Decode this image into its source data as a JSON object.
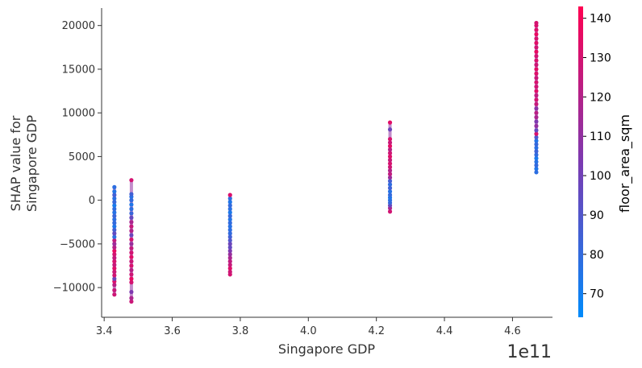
{
  "chart_data": {
    "type": "scatter",
    "title": "",
    "xlabel": "Singapore GDP",
    "ylabel_lines": [
      "SHAP value for",
      "Singapore GDP"
    ],
    "x_offset_label": "1e11",
    "x_scale": 100000000000,
    "xlim": [
      3.3925,
      4.7175
    ],
    "ylim": [
      -13400,
      22000
    ],
    "x_ticks": [
      3.4,
      3.6,
      3.8,
      4.0,
      4.2,
      4.4,
      4.6
    ],
    "x_tick_labels": [
      "3.4",
      "3.6",
      "3.8",
      "4.0",
      "4.2",
      "4.4",
      "4.6"
    ],
    "y_ticks": [
      -10000,
      -5000,
      0,
      5000,
      10000,
      15000,
      20000
    ],
    "y_tick_labels": [
      "−10000",
      "−5000",
      "0",
      "5000",
      "10000",
      "15000",
      "20000"
    ],
    "grid": false,
    "colorbar": {
      "label": "floor_area_sqm",
      "min": 64,
      "max": 143,
      "ticks": [
        70,
        80,
        90,
        100,
        110,
        120,
        130,
        140
      ],
      "tick_labels": [
        "70",
        "80",
        "90",
        "100",
        "110",
        "120",
        "130",
        "140"
      ],
      "colors": {
        "low": "#008bfb",
        "mid": "#7c3ab1",
        "high": "#ff0051"
      }
    },
    "groups": [
      {
        "x": 3.43,
        "ymin": -10800,
        "ymax": 1500,
        "points": [
          [
            -10800,
            128
          ],
          [
            -10300,
            126
          ],
          [
            -9700,
            122
          ],
          [
            -9300,
            132
          ],
          [
            -9000,
            98
          ],
          [
            -8600,
            129
          ],
          [
            -8200,
            127
          ],
          [
            -7800,
            133
          ],
          [
            -7400,
            126
          ],
          [
            -7000,
            131
          ],
          [
            -6600,
            125
          ],
          [
            -6200,
            129
          ],
          [
            -5800,
            136
          ],
          [
            -5400,
            121
          ],
          [
            -5000,
            113
          ],
          [
            -4600,
            124
          ],
          [
            -4200,
            78
          ],
          [
            -3800,
            95
          ],
          [
            -3400,
            86
          ],
          [
            -3000,
            74
          ],
          [
            -2600,
            80
          ],
          [
            -2200,
            78
          ],
          [
            -1800,
            82
          ],
          [
            -1400,
            76
          ],
          [
            -1000,
            79
          ],
          [
            -600,
            72
          ],
          [
            -200,
            81
          ],
          [
            200,
            77
          ],
          [
            600,
            85
          ],
          [
            1000,
            75
          ],
          [
            1500,
            78
          ]
        ]
      },
      {
        "x": 3.48,
        "ymin": -11600,
        "ymax": 2300,
        "points": [
          [
            -11600,
            127
          ],
          [
            -11200,
            118
          ],
          [
            -10500,
            104
          ],
          [
            -9400,
            130
          ],
          [
            -9000,
            136
          ],
          [
            -8500,
            128
          ],
          [
            -8000,
            122
          ],
          [
            -7500,
            131
          ],
          [
            -7000,
            127
          ],
          [
            -6500,
            134
          ],
          [
            -6000,
            129
          ],
          [
            -5500,
            125
          ],
          [
            -5000,
            112
          ],
          [
            -4500,
            130
          ],
          [
            -4000,
            98
          ],
          [
            -3500,
            120
          ],
          [
            -3000,
            126
          ],
          [
            -2500,
            118
          ],
          [
            -2000,
            96
          ],
          [
            -1500,
            82
          ],
          [
            -1000,
            78
          ],
          [
            -500,
            74
          ],
          [
            0,
            80
          ],
          [
            400,
            77
          ],
          [
            700,
            85
          ],
          [
            2300,
            130
          ]
        ]
      },
      {
        "x": 3.77,
        "ymin": -8500,
        "ymax": 600,
        "points": [
          [
            -8500,
            130
          ],
          [
            -8200,
            128
          ],
          [
            -7800,
            133
          ],
          [
            -7400,
            126
          ],
          [
            -7000,
            124
          ],
          [
            -6600,
            118
          ],
          [
            -6200,
            112
          ],
          [
            -5800,
            104
          ],
          [
            -5400,
            96
          ],
          [
            -5000,
            98
          ],
          [
            -4600,
            90
          ],
          [
            -4200,
            85
          ],
          [
            -3800,
            80
          ],
          [
            -3400,
            78
          ],
          [
            -3000,
            76
          ],
          [
            -2600,
            79
          ],
          [
            -2200,
            75
          ],
          [
            -1800,
            81
          ],
          [
            -1400,
            73
          ],
          [
            -1000,
            77
          ],
          [
            -600,
            80
          ],
          [
            -200,
            74
          ],
          [
            200,
            78
          ],
          [
            600,
            132
          ]
        ]
      },
      {
        "x": 4.24,
        "ymin": -1300,
        "ymax": 8900,
        "points": [
          [
            -1300,
            129
          ],
          [
            -900,
            118
          ],
          [
            -600,
            98
          ],
          [
            -300,
            82
          ],
          [
            0,
            78
          ],
          [
            300,
            74
          ],
          [
            600,
            80
          ],
          [
            1000,
            76
          ],
          [
            1400,
            84
          ],
          [
            1800,
            79
          ],
          [
            2200,
            86
          ],
          [
            2600,
            112
          ],
          [
            3000,
            124
          ],
          [
            3400,
            120
          ],
          [
            3800,
            128
          ],
          [
            4200,
            131
          ],
          [
            4600,
            126
          ],
          [
            5000,
            133
          ],
          [
            5400,
            129
          ],
          [
            5800,
            122
          ],
          [
            6200,
            135
          ],
          [
            6600,
            127
          ],
          [
            7000,
            131
          ],
          [
            8100,
            98
          ],
          [
            8900,
            134
          ]
        ]
      },
      {
        "x": 4.67,
        "ymin": 3200,
        "ymax": 20300,
        "points": [
          [
            3200,
            78
          ],
          [
            3600,
            74
          ],
          [
            4000,
            80
          ],
          [
            4400,
            76
          ],
          [
            4800,
            72
          ],
          [
            5200,
            79
          ],
          [
            5600,
            83
          ],
          [
            6000,
            77
          ],
          [
            6400,
            81
          ],
          [
            6800,
            75
          ],
          [
            7200,
            88
          ],
          [
            7600,
            132
          ],
          [
            8000,
            96
          ],
          [
            8500,
            110
          ],
          [
            9000,
            104
          ],
          [
            9500,
            118
          ],
          [
            10000,
            122
          ],
          [
            10500,
            108
          ],
          [
            11000,
            126
          ],
          [
            11500,
            130
          ],
          [
            12000,
            124
          ],
          [
            12500,
            134
          ],
          [
            13000,
            129
          ],
          [
            13500,
            131
          ],
          [
            14000,
            127
          ],
          [
            14500,
            133
          ],
          [
            15000,
            135
          ],
          [
            15500,
            128
          ],
          [
            16000,
            132
          ],
          [
            16500,
            130
          ],
          [
            17000,
            136
          ],
          [
            17500,
            129
          ],
          [
            18000,
            134
          ],
          [
            18500,
            131
          ],
          [
            19000,
            137
          ],
          [
            19500,
            133
          ],
          [
            20000,
            132
          ],
          [
            20300,
            130
          ]
        ]
      }
    ]
  }
}
